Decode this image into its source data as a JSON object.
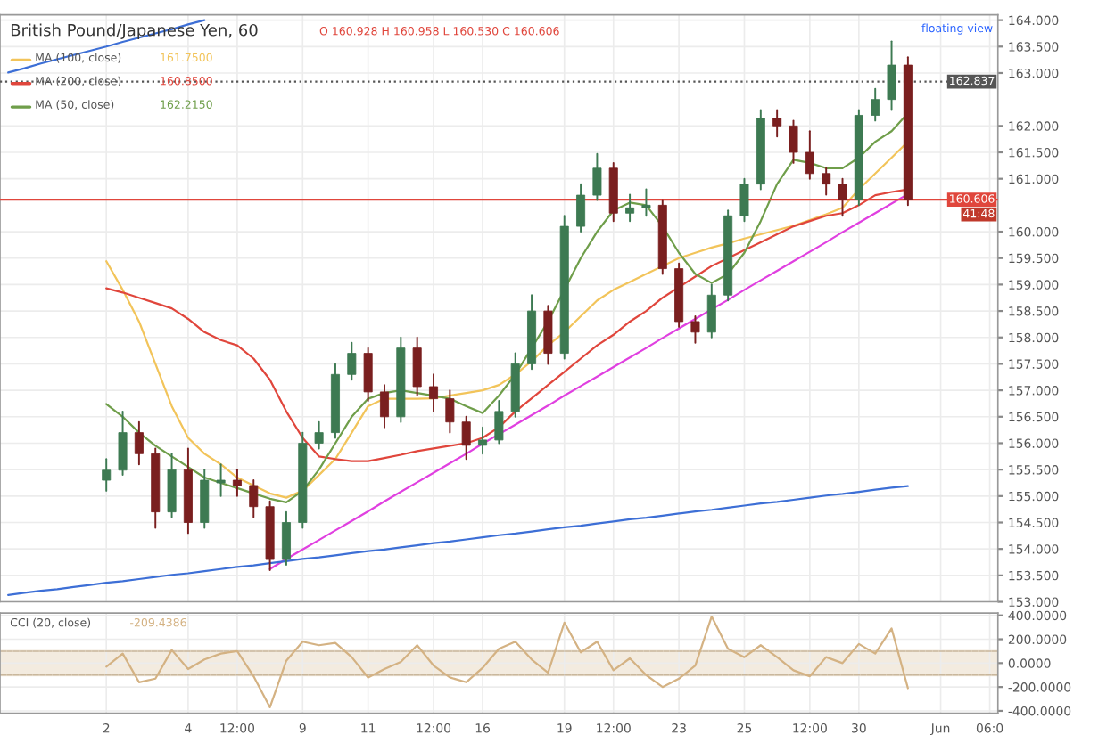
{
  "chart_data": [
    {
      "type": "candlestick",
      "legend": "top left",
      "grid": true,
      "tick_labels": "y",
      "annotations": [
        "British Pound/Japanese Yen, 60",
        "O 160.928 H 160.958 L 160.530 C 160.606",
        "161.7500",
        "160.8500",
        "162.2150",
        "41:48",
        "floating view"
      ],
      "categories": [
        null,
        null,
        null,
        null,
        null,
        null,
        null,
        null,
        null,
        null,
        null,
        null,
        null,
        null,
        null,
        null,
        null,
        null,
        null,
        null,
        null,
        null,
        null,
        null,
        null,
        null,
        null,
        null,
        null,
        null,
        null,
        null,
        null,
        null,
        null,
        null,
        null,
        null,
        null,
        null,
        null,
        null,
        null,
        null,
        null,
        null,
        null,
        null,
        null,
        null,
        null,
        null,
        null,
        null,
        null,
        null,
        null,
        null,
        null,
        null,
        null
      ],
      "ylim": [
        153,
        164.1
      ],
      "yticks": [
        {
          "value": 153,
          "label": "153.000"
        },
        {
          "value": 153.5,
          "label": "153.500"
        },
        {
          "value": 154,
          "label": "154.000"
        },
        {
          "value": 154.5,
          "label": "154.500"
        },
        {
          "value": 155,
          "label": "155.000"
        },
        {
          "value": 155.5,
          "label": "155.500"
        },
        {
          "value": 156,
          "label": "156.000"
        },
        {
          "value": 156.5,
          "label": "156.500"
        },
        {
          "value": 157,
          "label": "157.000"
        },
        {
          "value": 157.5,
          "label": "157.500"
        },
        {
          "value": 158,
          "label": "158.000"
        },
        {
          "value": 158.5,
          "label": "158.500"
        },
        {
          "value": 159,
          "label": "159.000"
        },
        {
          "value": 159.5,
          "label": "159.500"
        },
        {
          "value": 160,
          "label": "160.000"
        },
        {
          "value": 161,
          "label": "161.000"
        },
        {
          "value": 161.5,
          "label": "161.500"
        },
        {
          "value": 162,
          "label": "162.000"
        },
        {
          "value": 163,
          "label": "163.000"
        },
        {
          "value": 163.5,
          "label": "163.500"
        },
        {
          "value": 164,
          "label": "164.000"
        }
      ],
      "ref_lines": [
        {
          "axis": "y",
          "value": 162.837,
          "label": "162.837",
          "color": "#555555",
          "line_style": "dotted"
        },
        {
          "axis": "y",
          "value": 160.606,
          "label": "160.606",
          "color": "#e0463c",
          "line_style": "solid"
        }
      ],
      "series": [
        {
          "type": "line",
          "name": "MA (100, close)",
          "color": "#f2c45a",
          "values": [
            null,
            null,
            null,
            null,
            null,
            null,
            159.44,
            158.9,
            158.3,
            157.5,
            156.7,
            156.1,
            155.8,
            155.6,
            155.35,
            155.2,
            155.05,
            154.97,
            155.1,
            155.4,
            155.7,
            156.2,
            156.7,
            156.84,
            156.84,
            156.84,
            156.85,
            156.9,
            156.95,
            157.0,
            157.1,
            157.3,
            157.55,
            157.85,
            158.1,
            158.4,
            158.7,
            158.9,
            159.05,
            159.2,
            159.35,
            159.5,
            159.6,
            159.7,
            159.78,
            159.87,
            159.95,
            160.03,
            160.11,
            160.22,
            160.33,
            160.45,
            160.8,
            161.1,
            161.4,
            161.7,
            null,
            null,
            null,
            null,
            null
          ]
        },
        {
          "type": "line",
          "name": "MA (200, close)",
          "color": "#e0463c",
          "values": [
            null,
            null,
            null,
            null,
            null,
            null,
            158.93,
            158.85,
            158.75,
            158.65,
            158.55,
            158.35,
            158.1,
            157.95,
            157.85,
            157.6,
            157.2,
            156.6,
            156.1,
            155.75,
            155.7,
            155.66,
            155.66,
            155.72,
            155.78,
            155.85,
            155.9,
            155.95,
            156.0,
            156.1,
            156.3,
            156.6,
            156.85,
            157.1,
            157.35,
            157.6,
            157.85,
            158.05,
            158.3,
            158.5,
            158.75,
            158.95,
            159.15,
            159.35,
            159.5,
            159.65,
            159.8,
            159.95,
            160.1,
            160.2,
            160.3,
            160.35,
            160.5,
            160.69,
            160.75,
            160.8,
            null,
            null,
            null,
            null,
            null
          ]
        },
        {
          "type": "line",
          "name": "MA (50, close)",
          "color": "#6f9e4a",
          "values": [
            null,
            null,
            null,
            null,
            null,
            null,
            156.74,
            156.5,
            156.2,
            155.95,
            155.75,
            155.55,
            155.35,
            155.25,
            155.15,
            155.05,
            154.95,
            154.88,
            155.1,
            155.5,
            156.0,
            156.5,
            156.84,
            156.95,
            157.0,
            156.95,
            156.9,
            156.84,
            156.7,
            156.57,
            156.9,
            157.3,
            157.8,
            158.3,
            158.9,
            159.5,
            160.0,
            160.4,
            160.55,
            160.5,
            160.1,
            159.6,
            159.2,
            159.03,
            159.2,
            159.6,
            160.2,
            160.9,
            161.36,
            161.3,
            161.2,
            161.2,
            161.4,
            161.7,
            161.9,
            162.24,
            null,
            null,
            null,
            null,
            null
          ]
        },
        {
          "type": "line",
          "color": "#e040e0",
          "values": [
            null,
            null,
            null,
            null,
            null,
            null,
            null,
            null,
            null,
            null,
            null,
            null,
            null,
            null,
            null,
            null,
            153.62,
            153.81,
            153.99,
            154.17,
            154.35,
            154.53,
            154.71,
            154.9,
            155.08,
            155.26,
            155.44,
            155.62,
            155.8,
            155.99,
            156.17,
            156.35,
            156.53,
            156.71,
            156.9,
            157.08,
            157.26,
            157.44,
            157.62,
            157.8,
            157.99,
            158.17,
            158.35,
            158.53,
            158.71,
            158.9,
            159.08,
            159.26,
            159.44,
            159.62,
            159.8,
            159.99,
            160.17,
            160.35,
            160.53,
            160.71,
            null,
            null,
            null,
            null,
            null
          ]
        },
        {
          "type": "line",
          "color": "#3d6fd6",
          "values": [
            153.13,
            153.17,
            153.21,
            153.24,
            153.28,
            153.32,
            153.36,
            153.39,
            153.43,
            153.47,
            153.51,
            153.54,
            153.58,
            153.62,
            153.66,
            153.69,
            153.73,
            153.77,
            153.81,
            153.84,
            153.88,
            153.92,
            153.96,
            153.99,
            154.03,
            154.07,
            154.11,
            154.14,
            154.18,
            154.22,
            154.26,
            154.29,
            154.33,
            154.37,
            154.41,
            154.44,
            154.48,
            154.52,
            154.56,
            154.59,
            154.63,
            154.67,
            154.71,
            154.74,
            154.78,
            154.82,
            154.86,
            154.89,
            154.93,
            154.97,
            155.01,
            155.04,
            155.08,
            155.12,
            155.16,
            155.19,
            null,
            null,
            null,
            null,
            null
          ]
        },
        {
          "type": "line",
          "color": "#3d6fd6",
          "values": [
            163.01,
            163.09,
            163.18,
            163.26,
            163.34,
            163.42,
            163.5,
            163.59,
            163.67,
            163.75,
            163.83,
            163.92,
            164.0,
            null,
            null,
            null,
            null,
            null,
            null,
            null,
            null,
            null,
            null,
            null,
            null,
            null,
            null,
            null,
            null,
            null,
            null,
            null,
            null,
            null,
            null,
            null,
            null,
            null,
            null,
            null,
            null,
            null,
            null,
            null,
            null,
            null,
            null,
            null,
            null,
            null,
            null,
            null,
            null,
            null,
            null,
            null,
            null,
            null,
            null,
            null,
            null
          ]
        },
        {
          "type": "candlestick",
          "ohlc": [
            null,
            null,
            null,
            null,
            null,
            null,
            [
              155.3,
              155.7,
              155.1,
              155.49
            ],
            [
              155.49,
              156.6,
              155.4,
              156.2
            ],
            [
              156.2,
              156.4,
              155.6,
              155.8
            ],
            [
              155.8,
              155.9,
              154.4,
              154.7
            ],
            [
              154.7,
              155.8,
              154.6,
              155.5
            ],
            [
              155.5,
              155.9,
              154.3,
              154.5
            ],
            [
              154.5,
              155.5,
              154.4,
              155.3
            ],
            [
              155.25,
              155.6,
              155.0,
              155.3
            ],
            [
              155.3,
              155.5,
              155.0,
              155.2
            ],
            [
              155.2,
              155.3,
              154.6,
              154.8
            ],
            [
              154.8,
              154.9,
              153.6,
              153.8
            ],
            [
              153.8,
              154.7,
              153.7,
              154.5
            ],
            [
              154.5,
              156.2,
              154.4,
              156.0
            ],
            [
              156.0,
              156.4,
              155.9,
              156.2
            ],
            [
              156.2,
              157.5,
              156.1,
              157.3
            ],
            [
              157.3,
              157.9,
              157.2,
              157.7
            ],
            [
              157.7,
              157.8,
              156.8,
              156.97
            ],
            [
              156.97,
              157.1,
              156.3,
              156.5
            ],
            [
              156.5,
              158.0,
              156.4,
              157.8
            ],
            [
              157.8,
              158.0,
              156.9,
              157.07
            ],
            [
              157.07,
              157.3,
              156.6,
              156.84
            ],
            [
              156.84,
              157.0,
              156.2,
              156.4
            ],
            [
              156.4,
              156.5,
              155.7,
              155.96
            ],
            [
              155.96,
              156.3,
              155.8,
              156.06
            ],
            [
              156.06,
              156.8,
              156.0,
              156.6
            ],
            [
              156.6,
              157.7,
              156.5,
              157.5
            ],
            [
              157.5,
              158.8,
              157.4,
              158.5
            ],
            [
              158.5,
              158.6,
              157.5,
              157.7
            ],
            [
              157.7,
              160.3,
              157.6,
              160.1
            ],
            [
              160.1,
              160.9,
              160.0,
              160.69
            ],
            [
              160.69,
              161.47,
              160.6,
              161.2
            ],
            [
              161.2,
              161.3,
              160.2,
              160.35
            ],
            [
              160.35,
              160.7,
              160.2,
              160.45
            ],
            [
              160.45,
              160.8,
              160.3,
              160.5
            ],
            [
              160.5,
              160.6,
              159.2,
              159.3
            ],
            [
              159.3,
              159.4,
              158.2,
              158.3
            ],
            [
              158.3,
              158.4,
              157.9,
              158.1
            ],
            [
              158.1,
              159.0,
              158.0,
              158.8
            ],
            [
              158.8,
              160.4,
              158.7,
              160.3
            ],
            [
              160.3,
              161.0,
              160.2,
              160.9
            ],
            [
              160.9,
              162.3,
              160.8,
              162.14
            ],
            [
              162.14,
              162.3,
              161.8,
              162.0
            ],
            [
              162.0,
              162.1,
              161.3,
              161.5
            ],
            [
              161.5,
              161.9,
              161.0,
              161.1
            ],
            [
              161.1,
              161.2,
              160.7,
              160.9
            ],
            [
              160.9,
              161.0,
              160.3,
              160.6
            ],
            [
              160.6,
              162.3,
              160.5,
              162.2
            ],
            [
              162.2,
              162.7,
              162.1,
              162.5
            ],
            [
              162.5,
              163.6,
              162.3,
              163.15
            ],
            [
              163.15,
              163.3,
              160.5,
              160.606
            ],
            null,
            null,
            null,
            null,
            null
          ],
          "colors": [
            null,
            null,
            null,
            null,
            null,
            null,
            "#3d7a52",
            "#3d7a52",
            "#7a1f1f",
            "#7a1f1f",
            "#3d7a52",
            "#7a1f1f",
            "#3d7a52",
            "#3d7a52",
            "#7a1f1f",
            "#7a1f1f",
            "#7a1f1f",
            "#3d7a52",
            "#3d7a52",
            "#3d7a52",
            "#3d7a52",
            "#3d7a52",
            "#7a1f1f",
            "#7a1f1f",
            "#3d7a52",
            "#7a1f1f",
            "#7a1f1f",
            "#7a1f1f",
            "#7a1f1f",
            "#3d7a52",
            "#3d7a52",
            "#3d7a52",
            "#3d7a52",
            "#7a1f1f",
            "#3d7a52",
            "#3d7a52",
            "#3d7a52",
            "#7a1f1f",
            "#3d7a52",
            "#3d7a52",
            "#7a1f1f",
            "#7a1f1f",
            "#7a1f1f",
            "#3d7a52",
            "#3d7a52",
            "#3d7a52",
            "#3d7a52",
            "#7a1f1f",
            "#7a1f1f",
            "#7a1f1f",
            "#7a1f1f",
            "#7a1f1f",
            "#3d7a52",
            "#3d7a52",
            "#3d7a52",
            "#7a1f1f",
            null,
            null,
            null,
            null,
            null
          ]
        }
      ]
    },
    {
      "type": "line",
      "legend": "top left",
      "grid": true,
      "annotations": [
        "-209.4386"
      ],
      "categories": [
        null,
        null,
        null,
        null,
        null,
        null,
        "2",
        null,
        null,
        null,
        null,
        "4",
        null,
        null,
        "12:00",
        null,
        null,
        null,
        "9",
        null,
        null,
        null,
        "11",
        null,
        null,
        null,
        "12:00",
        null,
        null,
        "16",
        null,
        null,
        null,
        null,
        "19",
        null,
        null,
        "12:00",
        null,
        null,
        null,
        "23",
        null,
        null,
        null,
        "25",
        null,
        null,
        null,
        "12:00",
        null,
        null,
        "30",
        null,
        null,
        null,
        null,
        "Jun",
        null,
        null,
        "06:0"
      ],
      "ylim": [
        -420,
        420
      ],
      "yticks": [
        {
          "value": 400,
          "label": "400.0000"
        },
        {
          "value": 200,
          "label": "200.0000"
        },
        {
          "value": 0,
          "label": "0.0000"
        },
        {
          "value": -200,
          "label": "-200.0000"
        },
        {
          "value": -400,
          "label": "-400.0000"
        }
      ],
      "bands": [
        {
          "axis": "y",
          "from": -100,
          "to": 100,
          "color": "#f3ebdf"
        }
      ],
      "series": [
        {
          "name": "CCI (20, close)",
          "color": "#d4b283",
          "values": [
            null,
            null,
            null,
            null,
            null,
            null,
            -30,
            80,
            -160,
            -130,
            110,
            -50,
            30,
            80,
            100,
            -110,
            -370,
            20,
            180,
            150,
            170,
            50,
            -120,
            -50,
            10,
            150,
            -20,
            -120,
            -160,
            -40,
            120,
            180,
            30,
            -80,
            340,
            90,
            180,
            -60,
            40,
            -100,
            -200,
            -130,
            -20,
            390,
            120,
            50,
            150,
            50,
            -60,
            -110,
            50,
            0,
            160,
            80,
            290,
            -210,
            null,
            null,
            null,
            null,
            null
          ]
        }
      ]
    }
  ]
}
